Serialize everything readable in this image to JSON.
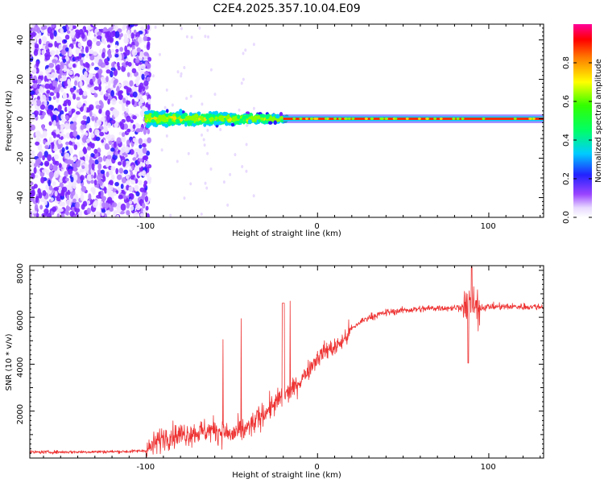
{
  "figure_title": "C2E4.2025.357.10.04.E09",
  "chart_data": [
    {
      "type": "heatmap",
      "xlabel": "Height of straight line (km)",
      "ylabel": "Frequency (Hz)",
      "xlim": [
        -168,
        132
      ],
      "ylim": [
        -50,
        48
      ],
      "xticks": [
        -100,
        0,
        100
      ],
      "xtick_labels": [
        "-100",
        "0",
        "100"
      ],
      "yticks": [
        -40,
        -20,
        0,
        20,
        40
      ],
      "ytick_labels": [
        "-40",
        "-20",
        "0",
        "20",
        "40"
      ],
      "description_regions": [
        {
          "x_range": [
            -168,
            -96
          ],
          "level": "noise",
          "amplitude": [
            0.0,
            0.2
          ]
        },
        {
          "x_range": [
            -100,
            -20
          ],
          "level": "turbulent",
          "freq_spread_hz": [
            -7,
            7
          ],
          "amplitude": [
            0.2,
            0.8
          ]
        },
        {
          "x_range": [
            -20,
            132
          ],
          "level": "stable",
          "freq_hz": 0,
          "amplitude": [
            0.8,
            1.0
          ]
        }
      ],
      "colorbar": {
        "label": "Normalized spectral amplitude",
        "ticks": [
          0.0,
          0.2,
          0.4,
          0.6,
          0.8
        ],
        "tick_labels": [
          "0.0",
          "0.2",
          "0.4",
          "0.6",
          "0.8"
        ],
        "range": [
          0,
          1
        ]
      }
    },
    {
      "type": "line",
      "xlabel": "Height of straight line (km)",
      "ylabel": "SNR (10 * v/v)",
      "xlim": [
        -168,
        132
      ],
      "ylim": [
        0,
        8200
      ],
      "xticks": [
        -100,
        0,
        100
      ],
      "xtick_labels": [
        "-100",
        "0",
        "100"
      ],
      "yticks": [
        2000,
        4000,
        6000,
        8000
      ],
      "ytick_labels": [
        "2000",
        "4000",
        "6000",
        "8000"
      ],
      "series": [
        {
          "name": "SNR",
          "color": "#ee3333",
          "x": [
            -168,
            -140,
            -110,
            -100,
            -95,
            -90,
            -80,
            -70,
            -60,
            -50,
            -40,
            -30,
            -25,
            -20,
            -15,
            -10,
            -5,
            0,
            5,
            10,
            15,
            20,
            25,
            30,
            40,
            50,
            60,
            70,
            80,
            85,
            90,
            95,
            100,
            110,
            120,
            132
          ],
          "values": [
            250,
            260,
            280,
            320,
            600,
            900,
            1000,
            1100,
            1200,
            1000,
            1300,
            2000,
            2300,
            2600,
            2900,
            3300,
            3800,
            4300,
            4600,
            4700,
            5000,
            5500,
            5800,
            6000,
            6200,
            6300,
            6350,
            6400,
            6400,
            6450,
            6500,
            6400,
            6450,
            6450,
            6450,
            6450
          ]
        }
      ],
      "annotations": [
        {
          "x": -20,
          "peak": 6600
        },
        {
          "x": 90,
          "peak": 8150,
          "dip": 4050
        }
      ]
    }
  ]
}
